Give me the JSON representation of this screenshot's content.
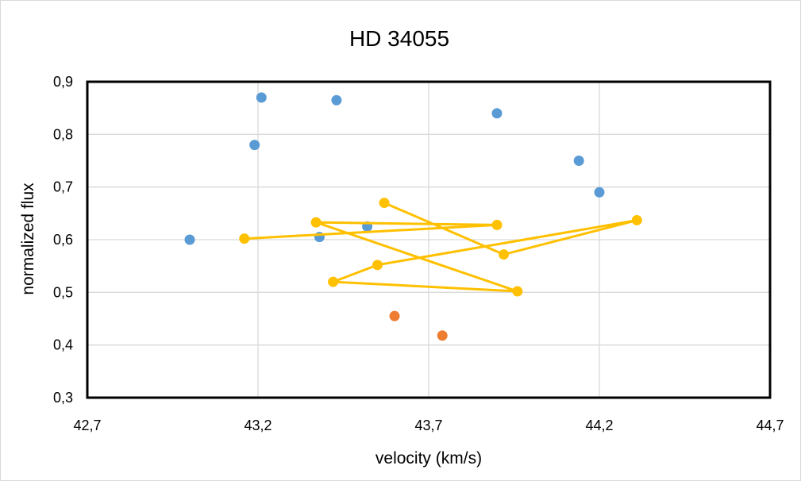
{
  "chart_data": {
    "type": "scatter",
    "title": "HD 34055",
    "xlabel": "velocity (km/s)",
    "ylabel": "normalized flux",
    "xlim": [
      42.7,
      44.7
    ],
    "ylim": [
      0.3,
      0.9
    ],
    "x_ticks": [
      "42,7",
      "43,2",
      "43,7",
      "44,2",
      "44,7"
    ],
    "y_ticks": [
      "0,3",
      "0,4",
      "0,5",
      "0,6",
      "0,7",
      "0,8",
      "0,9"
    ],
    "grid": true,
    "legend": "none",
    "series": [
      {
        "color": "#5b9bd5",
        "mode": "markers",
        "points": [
          [
            43.0,
            0.6
          ],
          [
            43.19,
            0.78
          ],
          [
            43.21,
            0.87
          ],
          [
            43.43,
            0.865
          ],
          [
            43.9,
            0.84
          ],
          [
            44.14,
            0.75
          ],
          [
            44.2,
            0.69
          ],
          [
            43.38,
            0.605
          ],
          [
            43.52,
            0.625
          ]
        ]
      },
      {
        "color": "#ed7d31",
        "mode": "markers",
        "points": [
          [
            43.6,
            0.455
          ],
          [
            43.74,
            0.418
          ]
        ]
      },
      {
        "color": "#ffc000",
        "mode": "lines+markers",
        "points": [
          [
            43.16,
            0.602
          ],
          [
            43.9,
            0.628
          ],
          [
            43.37,
            0.633
          ],
          [
            43.96,
            0.502
          ],
          [
            43.42,
            0.52
          ],
          [
            43.55,
            0.552
          ],
          [
            44.31,
            0.637
          ],
          [
            43.92,
            0.572
          ],
          [
            43.57,
            0.67
          ]
        ]
      }
    ]
  }
}
